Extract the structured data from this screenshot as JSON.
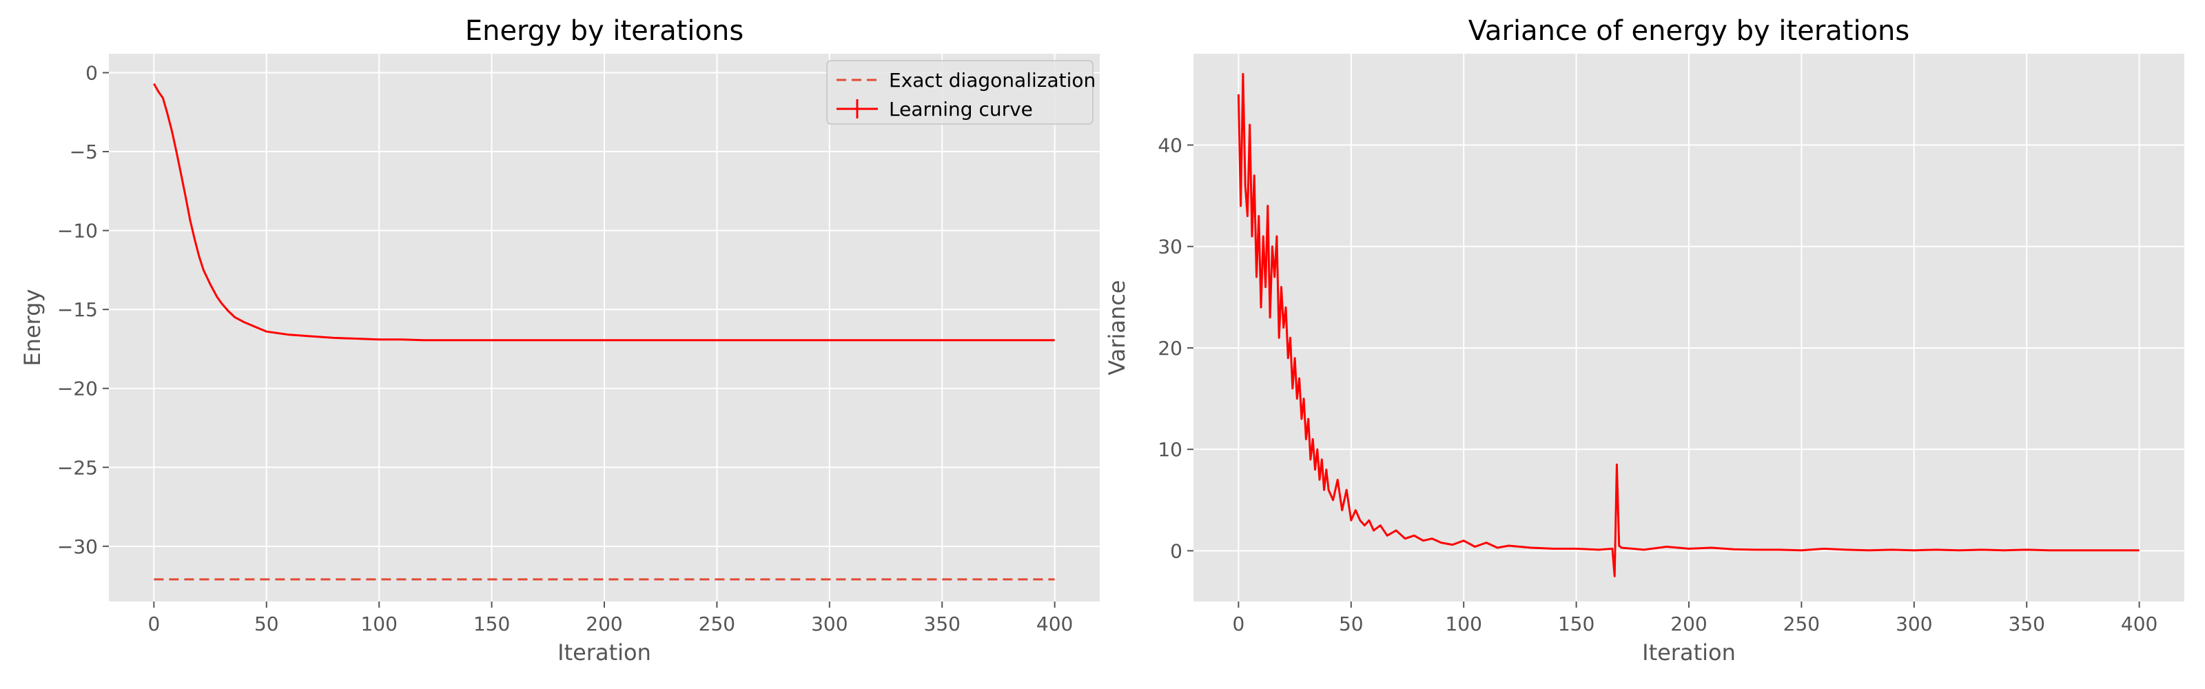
{
  "chart_data": [
    {
      "type": "line",
      "title": "Energy by iterations",
      "xlabel": "Iteration",
      "ylabel": "Energy",
      "xlim": [
        -20,
        420
      ],
      "ylim": [
        -33.5,
        1.2
      ],
      "xticks": [
        0,
        50,
        100,
        150,
        200,
        250,
        300,
        350,
        400
      ],
      "yticks": [
        0,
        -5,
        -10,
        -15,
        -20,
        -25,
        -30
      ],
      "grid": true,
      "legend_position": "top-right",
      "series": [
        {
          "name": "Exact diagonalization",
          "style": "dashed",
          "color": "#e24a33",
          "x": [
            0,
            400
          ],
          "y": [
            -32.1,
            -32.1
          ]
        },
        {
          "name": "Learning curve",
          "style": "solid-with-errorbars",
          "color": "#ff0000",
          "x": [
            0,
            2,
            4,
            6,
            8,
            10,
            12,
            14,
            16,
            18,
            20,
            22,
            25,
            28,
            30,
            33,
            36,
            40,
            45,
            50,
            55,
            60,
            70,
            80,
            90,
            100,
            110,
            120,
            140,
            160,
            180,
            200,
            250,
            300,
            350,
            400
          ],
          "y": [
            -0.7,
            -1.2,
            -1.6,
            -2.6,
            -3.7,
            -5.0,
            -6.4,
            -7.8,
            -9.3,
            -10.5,
            -11.6,
            -12.5,
            -13.4,
            -14.2,
            -14.6,
            -15.1,
            -15.5,
            -15.8,
            -16.1,
            -16.4,
            -16.5,
            -16.6,
            -16.7,
            -16.8,
            -16.85,
            -16.9,
            -16.9,
            -16.95,
            -16.95,
            -16.95,
            -16.95,
            -16.95,
            -16.95,
            -16.95,
            -16.95,
            -16.95
          ]
        }
      ]
    },
    {
      "type": "line",
      "title": "Variance of energy by iterations",
      "xlabel": "Iteration",
      "ylabel": "Variance",
      "xlim": [
        -20,
        420
      ],
      "ylim": [
        -5,
        49
      ],
      "xticks": [
        0,
        50,
        100,
        150,
        200,
        250,
        300,
        350,
        400
      ],
      "yticks": [
        0,
        10,
        20,
        30,
        40
      ],
      "grid": true,
      "series": [
        {
          "color": "#ff0000",
          "x": [
            0,
            1,
            2,
            3,
            4,
            5,
            6,
            7,
            8,
            9,
            10,
            11,
            12,
            13,
            14,
            15,
            16,
            17,
            18,
            19,
            20,
            21,
            22,
            23,
            24,
            25,
            26,
            27,
            28,
            29,
            30,
            31,
            32,
            33,
            34,
            35,
            36,
            37,
            38,
            39,
            40,
            42,
            44,
            46,
            48,
            50,
            52,
            54,
            56,
            58,
            60,
            63,
            66,
            70,
            74,
            78,
            82,
            86,
            90,
            95,
            100,
            105,
            110,
            115,
            120,
            130,
            140,
            150,
            160,
            166,
            167,
            168,
            169,
            170,
            175,
            180,
            190,
            200,
            210,
            220,
            230,
            240,
            250,
            260,
            270,
            280,
            290,
            300,
            310,
            320,
            330,
            340,
            350,
            360,
            370,
            380,
            390,
            400
          ],
          "y": [
            45,
            34,
            47,
            36,
            33,
            42,
            31,
            37,
            27,
            33,
            24,
            31,
            26,
            34,
            23,
            30,
            27,
            31,
            21,
            26,
            22,
            24,
            19,
            21,
            16,
            19,
            15,
            17,
            13,
            15,
            11,
            13,
            9,
            11,
            8,
            10,
            7,
            9,
            6,
            8,
            6,
            5,
            7,
            4,
            6,
            3,
            4,
            3,
            2.5,
            3,
            2,
            2.5,
            1.5,
            2,
            1.2,
            1.5,
            1,
            1.2,
            0.8,
            0.6,
            1,
            0.4,
            0.8,
            0.3,
            0.5,
            0.3,
            0.2,
            0.2,
            0.1,
            0.2,
            -2.5,
            8.5,
            0.5,
            0.3,
            0.2,
            0.1,
            0.4,
            0.2,
            0.3,
            0.15,
            0.1,
            0.1,
            0.05,
            0.2,
            0.1,
            0.05,
            0.1,
            0.05,
            0.1,
            0.05,
            0.1,
            0.05,
            0.1,
            0.05,
            0.05,
            0.05,
            0.05,
            0.05
          ]
        }
      ]
    }
  ]
}
